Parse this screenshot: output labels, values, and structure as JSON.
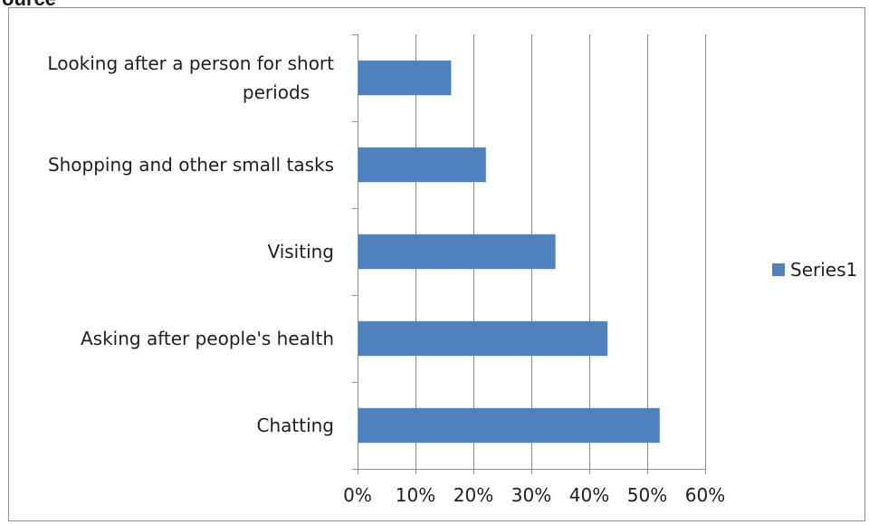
{
  "header": {
    "partial_text": "ource"
  },
  "chart_data": {
    "type": "bar",
    "orientation": "horizontal",
    "categories": [
      "Looking after a person for short periods",
      "Shopping and other small tasks",
      "Visiting",
      "Asking after people's health",
      "Chatting"
    ],
    "category_lines": [
      [
        "Looking after a person for short",
        "periods"
      ],
      [
        "Shopping and other small tasks"
      ],
      [
        "Visiting"
      ],
      [
        "Asking after people's health"
      ],
      [
        "Chatting"
      ]
    ],
    "series": [
      {
        "name": "Series1",
        "values": [
          0.16,
          0.22,
          0.34,
          0.43,
          0.52
        ],
        "color": "#4f81bd"
      }
    ],
    "xlim": [
      0,
      0.6
    ],
    "xticks": [
      0,
      0.1,
      0.2,
      0.3,
      0.4,
      0.5,
      0.6
    ],
    "xtick_labels": [
      "0%",
      "10%",
      "20%",
      "30%",
      "40%",
      "50%",
      "60%"
    ],
    "grid": "vertical",
    "gridline_color": "#8c8c8c",
    "legend": {
      "position": "right",
      "entries": [
        "Series1"
      ]
    }
  }
}
